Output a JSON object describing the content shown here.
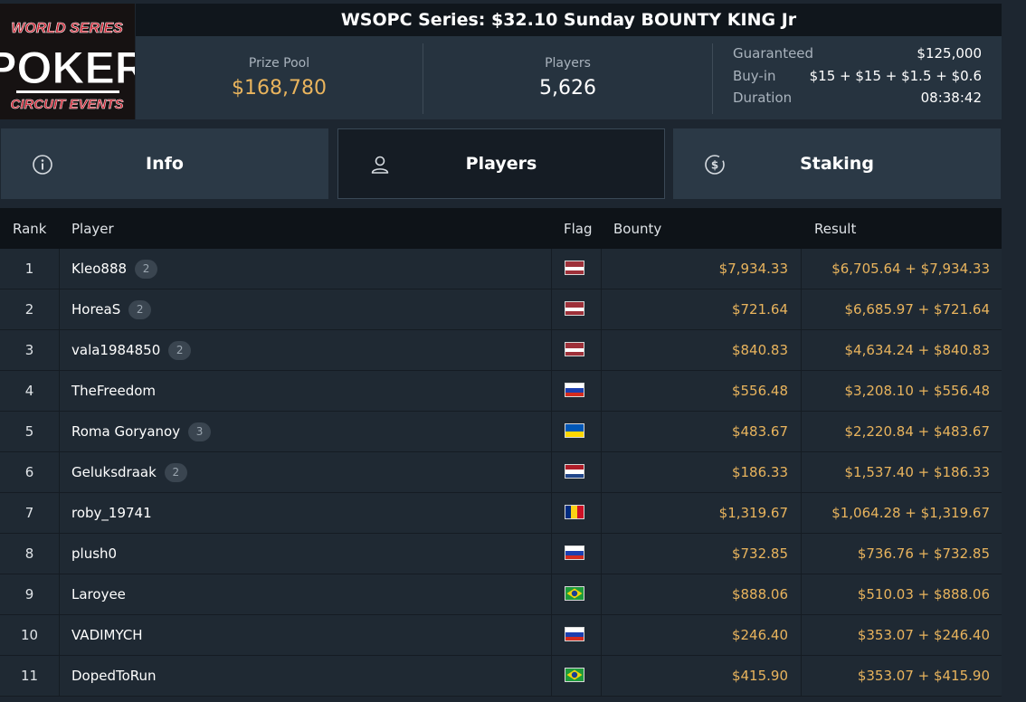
{
  "logo": {
    "line1": "WORLD SERIES",
    "line2": "POKER",
    "line3": "CIRCUIT EVENTS",
    "colors": {
      "background": "#161212",
      "red": "#c8202f",
      "white": "#ffffff"
    }
  },
  "title": "WSOPC Series: $32.10 Sunday BOUNTY KING Jr",
  "stats": {
    "prize_pool_label": "Prize Pool",
    "prize_pool": "$168,780",
    "players_label": "Players",
    "players": "5,626",
    "details": [
      {
        "label": "Guaranteed",
        "value": "$125,000"
      },
      {
        "label": "Buy-in",
        "value": "$15 + $15 + $1.5 + $0.6"
      },
      {
        "label": "Duration",
        "value": "08:38:42"
      }
    ]
  },
  "tabs": [
    {
      "label": "Info",
      "icon": "info-circle-icon",
      "active": false
    },
    {
      "label": "Players",
      "icon": "user-icon",
      "active": true
    },
    {
      "label": "Staking",
      "icon": "dollar-coin-icon",
      "active": false
    }
  ],
  "table": {
    "headers": {
      "rank": "Rank",
      "player": "Player",
      "flag": "Flag",
      "bounty": "Bounty",
      "result": "Result"
    },
    "rows": [
      {
        "rank": "1",
        "player": "Kleo888",
        "badge": "2",
        "flag": "latvia",
        "bounty": "$7,934.33",
        "result": "$6,705.64 + $7,934.33"
      },
      {
        "rank": "2",
        "player": "HoreaS",
        "badge": "2",
        "flag": "latvia",
        "bounty": "$721.64",
        "result": "$6,685.97 + $721.64"
      },
      {
        "rank": "3",
        "player": "vala1984850",
        "badge": "2",
        "flag": "latvia",
        "bounty": "$840.83",
        "result": "$4,634.24 + $840.83"
      },
      {
        "rank": "4",
        "player": "TheFreedom",
        "badge": "",
        "flag": "russia",
        "bounty": "$556.48",
        "result": "$3,208.10 + $556.48"
      },
      {
        "rank": "5",
        "player": "Roma Goryanoy",
        "badge": "3",
        "flag": "ukraine",
        "bounty": "$483.67",
        "result": "$2,220.84 + $483.67"
      },
      {
        "rank": "6",
        "player": "Geluksdraak",
        "badge": "2",
        "flag": "netherlands",
        "bounty": "$186.33",
        "result": "$1,537.40 + $186.33"
      },
      {
        "rank": "7",
        "player": "roby_19741",
        "badge": "",
        "flag": "romania",
        "bounty": "$1,319.67",
        "result": "$1,064.28 + $1,319.67"
      },
      {
        "rank": "8",
        "player": "plush0",
        "badge": "",
        "flag": "russia",
        "bounty": "$732.85",
        "result": "$736.76 + $732.85"
      },
      {
        "rank": "9",
        "player": "Laroyee",
        "badge": "",
        "flag": "brazil",
        "bounty": "$888.06",
        "result": "$510.03 + $888.06"
      },
      {
        "rank": "10",
        "player": "VADIMYCH",
        "badge": "",
        "flag": "russia",
        "bounty": "$246.40",
        "result": "$353.07 + $246.40"
      },
      {
        "rank": "11",
        "player": "DopedToRun",
        "badge": "",
        "flag": "brazil",
        "bounty": "$415.90",
        "result": "$353.07 + $415.90"
      }
    ]
  },
  "colors": {
    "accent_gold": "#e9b45d",
    "background": "#1d2630",
    "header_bg": "#10161c"
  }
}
